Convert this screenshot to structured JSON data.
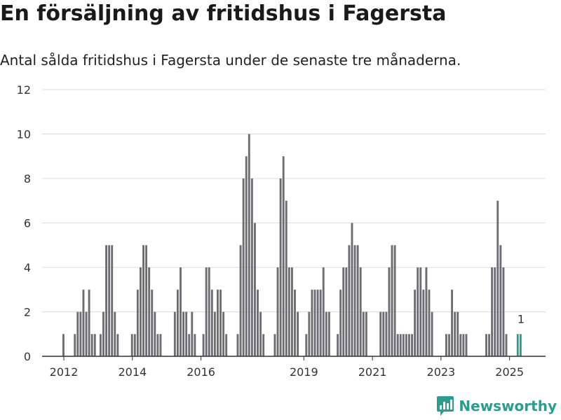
{
  "header": {
    "title": "En försäljning av fritidshus i Fagersta",
    "subtitle": "Antal sålda fritidshus i Fagersta under de senaste tre månaderna."
  },
  "brand": {
    "name": "Newsworthy",
    "icon": "bar-chart-logo-icon"
  },
  "colors": {
    "bar": "#6d6c72",
    "highlight": "#2a9d8f",
    "grid": "#dddddd",
    "axis": "#333333",
    "brand": "#2a9d8f"
  },
  "chart_data": {
    "type": "bar",
    "title": "",
    "xlabel": "",
    "ylabel": "",
    "ylim": [
      0,
      12
    ],
    "yticks": [
      0,
      2,
      4,
      6,
      8,
      10,
      12
    ],
    "xticks": [
      "2012",
      "2014",
      "2016",
      "2019",
      "2021",
      "2023",
      "2025"
    ],
    "grid": true,
    "legend": "none",
    "annotation": {
      "category": "2025-05",
      "text": "1"
    },
    "highlight": [
      "2025-04",
      "2025-05"
    ],
    "categories": [
      "2012-01",
      "2012-02",
      "2012-03",
      "2012-04",
      "2012-05",
      "2012-06",
      "2012-07",
      "2012-08",
      "2012-09",
      "2012-10",
      "2012-11",
      "2012-12",
      "2013-01",
      "2013-02",
      "2013-03",
      "2013-04",
      "2013-05",
      "2013-06",
      "2013-07",
      "2013-08",
      "2013-09",
      "2013-10",
      "2013-11",
      "2013-12",
      "2014-01",
      "2014-02",
      "2014-03",
      "2014-04",
      "2014-05",
      "2014-06",
      "2014-07",
      "2014-08",
      "2014-09",
      "2014-10",
      "2014-11",
      "2014-12",
      "2015-01",
      "2015-02",
      "2015-03",
      "2015-04",
      "2015-05",
      "2015-06",
      "2015-07",
      "2015-08",
      "2015-09",
      "2015-10",
      "2015-11",
      "2015-12",
      "2016-01",
      "2016-02",
      "2016-03",
      "2016-04",
      "2016-05",
      "2016-06",
      "2016-07",
      "2016-08",
      "2016-09",
      "2016-10",
      "2016-11",
      "2016-12",
      "2017-01",
      "2017-02",
      "2017-03",
      "2017-04",
      "2017-05",
      "2017-06",
      "2017-07",
      "2017-08",
      "2017-09",
      "2017-10",
      "2017-11",
      "2017-12",
      "2018-01",
      "2018-02",
      "2018-03",
      "2018-04",
      "2018-05",
      "2018-06",
      "2018-07",
      "2018-08",
      "2018-09",
      "2018-10",
      "2018-11",
      "2018-12",
      "2019-01",
      "2019-02",
      "2019-03",
      "2019-04",
      "2019-05",
      "2019-06",
      "2019-07",
      "2019-08",
      "2019-09",
      "2019-10",
      "2019-11",
      "2019-12",
      "2020-01",
      "2020-02",
      "2020-03",
      "2020-04",
      "2020-05",
      "2020-06",
      "2020-07",
      "2020-08",
      "2020-09",
      "2020-10",
      "2020-11",
      "2020-12",
      "2021-01",
      "2021-02",
      "2021-03",
      "2021-04",
      "2021-05",
      "2021-06",
      "2021-07",
      "2021-08",
      "2021-09",
      "2021-10",
      "2021-11",
      "2021-12",
      "2022-01",
      "2022-02",
      "2022-03",
      "2022-04",
      "2022-05",
      "2022-06",
      "2022-07",
      "2022-08",
      "2022-09",
      "2022-10",
      "2022-11",
      "2022-12",
      "2023-01",
      "2023-02",
      "2023-03",
      "2023-04",
      "2023-05",
      "2023-06",
      "2023-07",
      "2023-08",
      "2023-09",
      "2023-10",
      "2023-11",
      "2023-12",
      "2024-01",
      "2024-02",
      "2024-03",
      "2024-04",
      "2024-05",
      "2024-06",
      "2024-07",
      "2024-08",
      "2024-09",
      "2024-10",
      "2024-11",
      "2024-12",
      "2025-01",
      "2025-02",
      "2025-03",
      "2025-04",
      "2025-05"
    ],
    "values": [
      1,
      0,
      0,
      0,
      1,
      2,
      2,
      3,
      2,
      3,
      1,
      1,
      0,
      1,
      2,
      5,
      5,
      5,
      2,
      1,
      0,
      0,
      0,
      0,
      1,
      1,
      3,
      4,
      5,
      5,
      4,
      3,
      2,
      1,
      1,
      0,
      0,
      0,
      0,
      2,
      3,
      4,
      2,
      2,
      1,
      2,
      1,
      0,
      0,
      1,
      4,
      4,
      3,
      2,
      3,
      3,
      2,
      1,
      0,
      0,
      0,
      1,
      5,
      8,
      9,
      10,
      8,
      6,
      3,
      2,
      1,
      0,
      0,
      0,
      1,
      4,
      8,
      9,
      7,
      4,
      4,
      3,
      2,
      0,
      0,
      1,
      2,
      3,
      3,
      3,
      3,
      4,
      2,
      2,
      0,
      0,
      1,
      3,
      4,
      4,
      5,
      6,
      5,
      5,
      4,
      2,
      2,
      0,
      0,
      0,
      0,
      2,
      2,
      2,
      4,
      5,
      5,
      1,
      1,
      1,
      1,
      1,
      1,
      3,
      4,
      4,
      3,
      4,
      3,
      2,
      0,
      0,
      0,
      0,
      1,
      1,
      3,
      2,
      2,
      1,
      1,
      1,
      0,
      0,
      0,
      0,
      0,
      0,
      1,
      1,
      4,
      4,
      7,
      5,
      4,
      1,
      0,
      0,
      0,
      1,
      1
    ]
  }
}
